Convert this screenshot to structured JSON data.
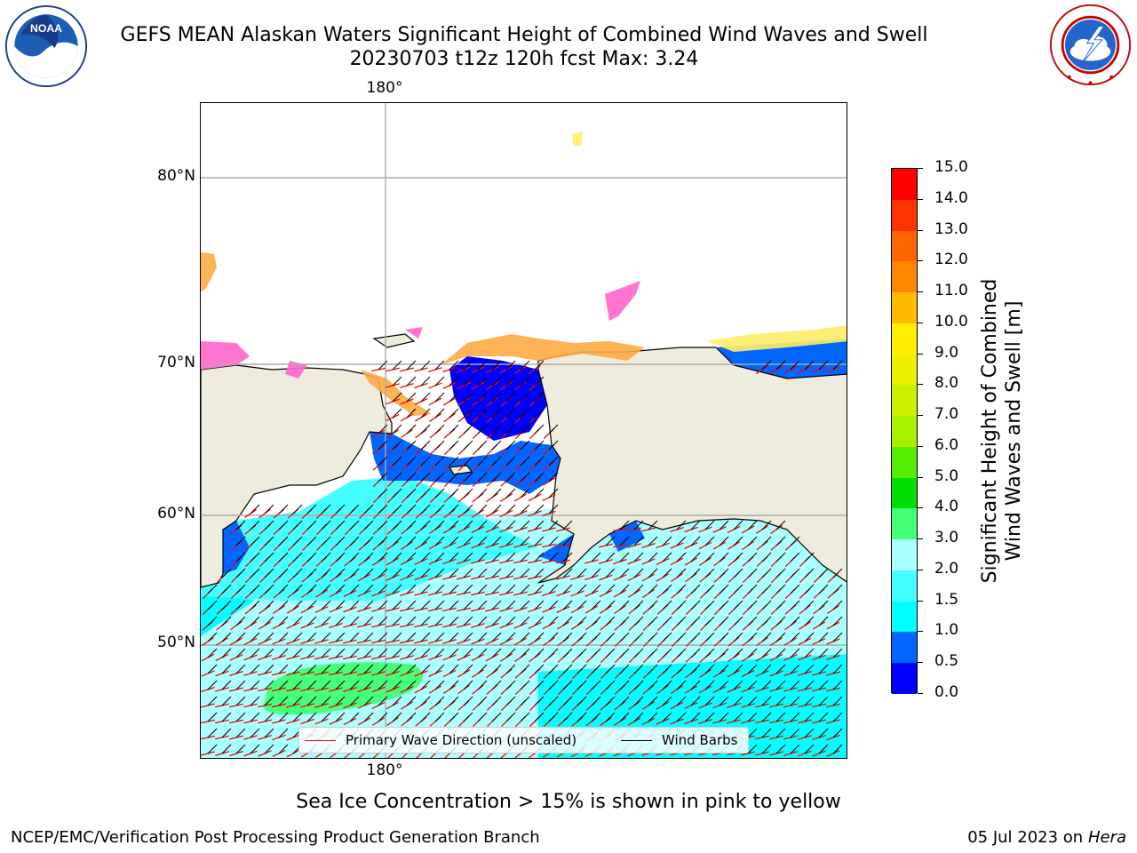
{
  "header": {
    "title_line1": "GEFS MEAN Alaskan Waters Significant Height of Combined Wind Waves and Swell",
    "title_line2": "20230703 t12z 120h fcst   Max: 3.24"
  },
  "logos": {
    "left": {
      "name": "noaa-logo",
      "text": "NOAA",
      "ring_text": "NATIONAL OCEANIC AND ATMOSPHERIC ADMINISTRATION · U.S. DEPARTMENT OF COMMERCE"
    },
    "right": {
      "name": "nws-logo",
      "ring_text": "NATIONAL WEATHER SERVICE"
    }
  },
  "map": {
    "lat_labels": [
      "80°N",
      "70°N",
      "60°N",
      "50°N"
    ],
    "lon_label_top": "180°",
    "lon_label_bottom": "180°",
    "colors": {
      "land": "#eeecdc",
      "ocean_low": "#0000ff",
      "ocean_1": "#0066ff",
      "ocean_2": "#00ffff",
      "ocean_3": "#44ffff",
      "ocean_4": "#aaffff",
      "ocean_5": "#44ff77",
      "ice_pink": "#ff66cc",
      "ice_orange": "#ffaa44",
      "ice_yellow": "#ffee66",
      "wave_arrow": "#ff0000",
      "wind_barb": "#000000",
      "grid": "#aaaaaa"
    }
  },
  "legend": {
    "wave_label": "Primary Wave Direction (unscaled)",
    "wind_label": "Wind Barbs"
  },
  "colorbar": {
    "title_line1": "Significant Height of Combined",
    "title_line2": "Wind Waves and Swell [m]",
    "levels": [
      "0.0",
      "0.5",
      "1.0",
      "1.5",
      "2.0",
      "3.0",
      "4.0",
      "5.0",
      "6.0",
      "7.0",
      "8.0",
      "9.0",
      "10.0",
      "11.0",
      "12.0",
      "13.0",
      "14.0",
      "15.0"
    ],
    "colors": [
      "#0000ff",
      "#0066ff",
      "#00ffff",
      "#44ffff",
      "#aaffff",
      "#44ff77",
      "#00dd00",
      "#55ee00",
      "#aaee00",
      "#ccee00",
      "#eeee00",
      "#ffee00",
      "#ffbb00",
      "#ff8800",
      "#ff6600",
      "#ff3300",
      "#ff0000"
    ]
  },
  "footer": {
    "note": "Sea Ice Concentration > 15% is shown in pink to yellow",
    "credit_left": "NCEP/EMC/Verification Post Processing Product Generation Branch",
    "credit_right_date": "05 Jul 2023 on ",
    "credit_right_machine": "Hera"
  }
}
